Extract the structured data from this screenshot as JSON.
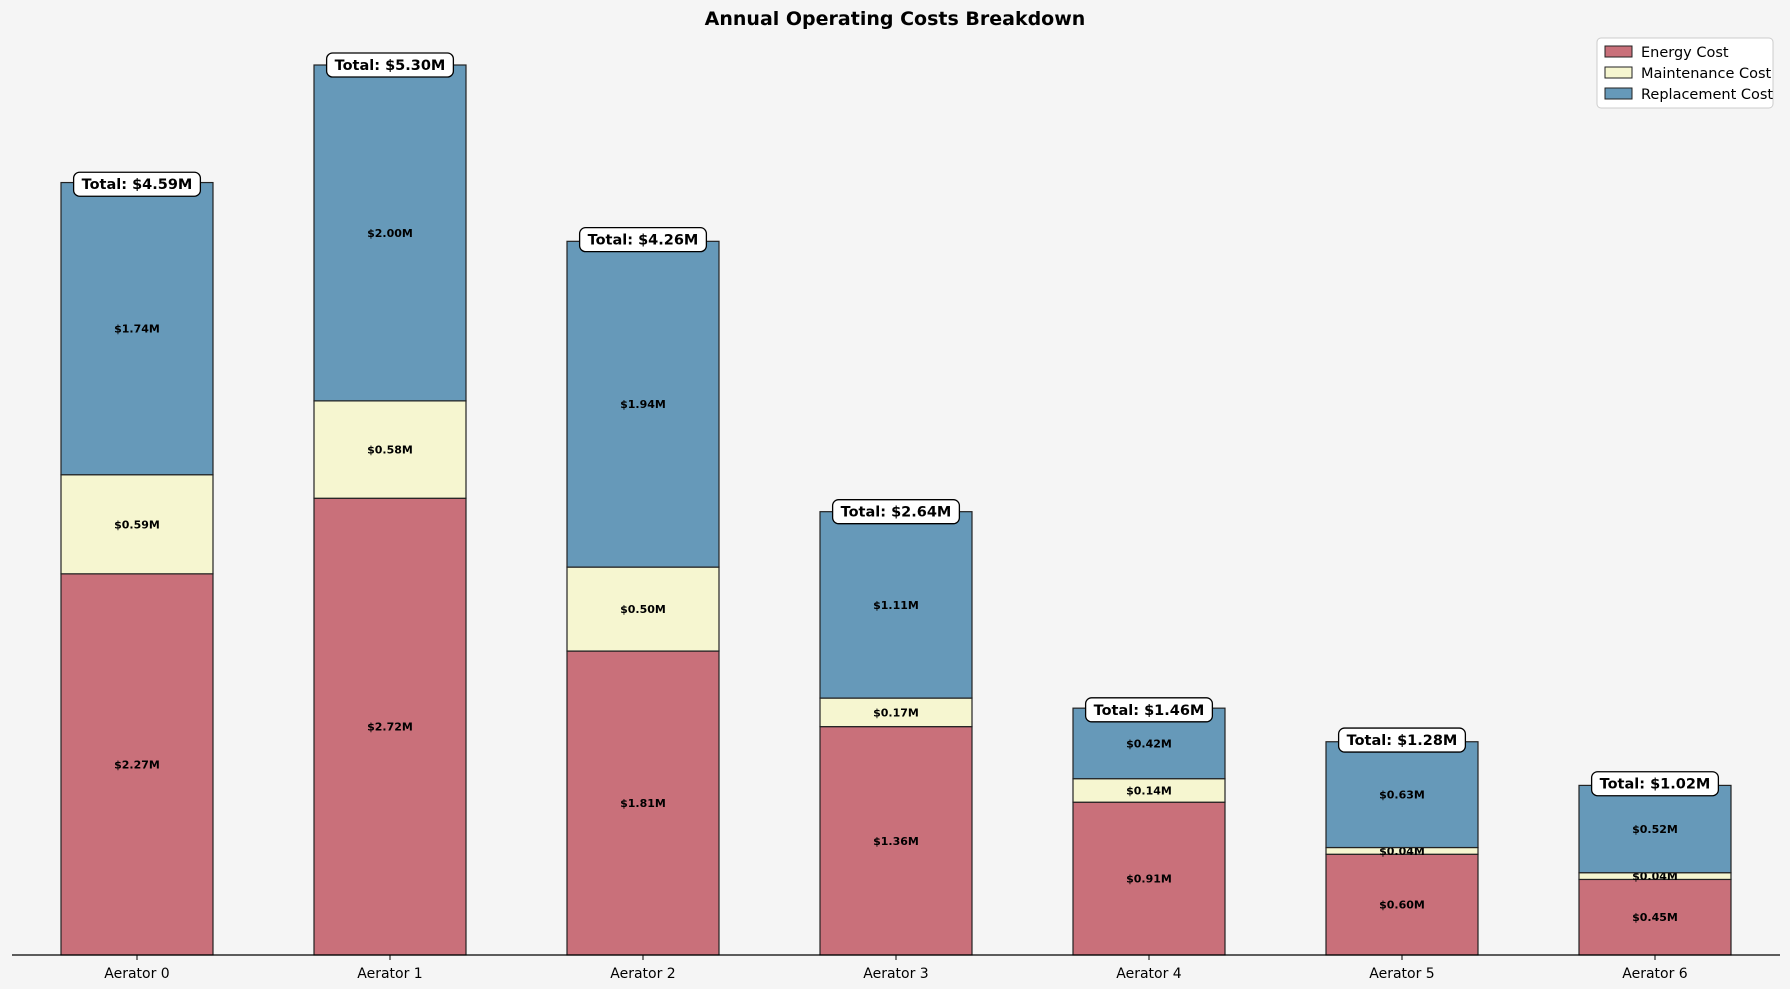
{
  "chart_data": {
    "type": "bar",
    "stacked": true,
    "title": "Annual Operating Costs Breakdown",
    "xlabel": "",
    "ylabel": "",
    "categories": [
      "Aerator 0",
      "Aerator 1",
      "Aerator 2",
      "Aerator 3",
      "Aerator 4",
      "Aerator 5",
      "Aerator 6"
    ],
    "series": [
      {
        "name": "Energy Cost",
        "color": "#c9707a",
        "values": [
          2.27,
          2.72,
          1.81,
          1.36,
          0.91,
          0.6,
          0.45
        ],
        "labels": [
          "$2.27M",
          "$2.72M",
          "$1.81M",
          "$1.36M",
          "$0.91M",
          "$0.60M",
          "$0.45M"
        ]
      },
      {
        "name": "Maintenance Cost",
        "color": "#f6f6d0",
        "values": [
          0.59,
          0.58,
          0.5,
          0.17,
          0.14,
          0.04,
          0.04
        ],
        "labels": [
          "$0.59M",
          "$0.58M",
          "$0.50M",
          "$0.17M",
          "$0.14M",
          "$0.04M",
          "$0.04M"
        ]
      },
      {
        "name": "Replacement Cost",
        "color": "#6699b9",
        "values": [
          1.74,
          2.0,
          1.94,
          1.11,
          0.42,
          0.63,
          0.52
        ],
        "labels": [
          "$1.74M",
          "$2.00M",
          "$1.94M",
          "$1.11M",
          "$0.42M",
          "$0.63M",
          "$0.52M"
        ]
      }
    ],
    "totals": [
      4.59,
      5.3,
      4.26,
      2.64,
      1.46,
      1.28,
      1.02
    ],
    "total_labels": [
      "Total: $4.59M",
      "Total: $5.30M",
      "Total: $4.26M",
      "Total: $2.64M",
      "Total: $1.46M",
      "Total: $1.28M",
      "Total: $1.02M"
    ],
    "ylim": [
      0,
      5.55
    ],
    "grid": false,
    "legend_position": "top-right"
  }
}
